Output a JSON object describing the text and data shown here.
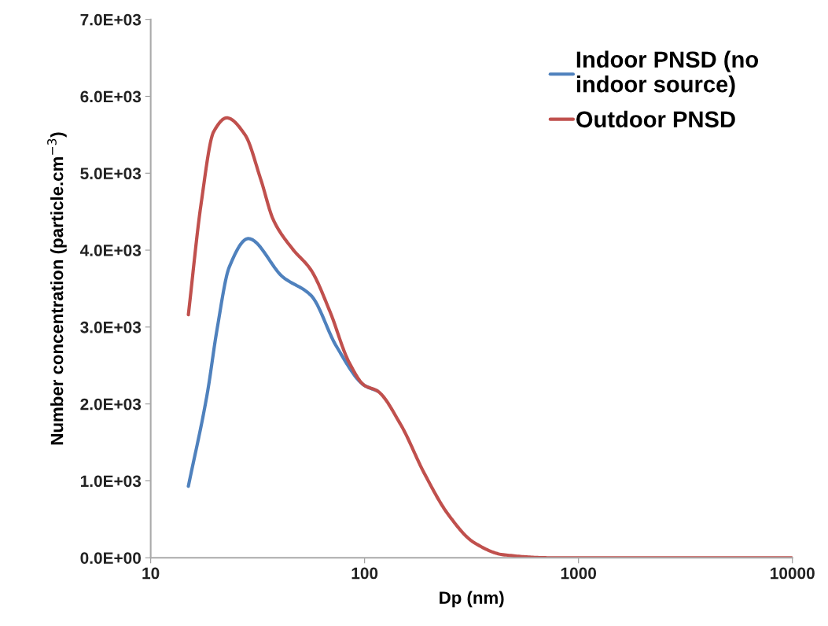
{
  "chart_data": {
    "type": "line",
    "xlabel": "Dp (nm)",
    "ylabel": "Number concentration (particle.cm$^{−3}$)",
    "log": "x",
    "xlim": [
      10,
      10000
    ],
    "xticks": [
      10,
      100,
      1000,
      10000
    ],
    "ylim": [
      0,
      7000
    ],
    "yticks": [
      {
        "value": 0,
        "label": "0.0E+00"
      },
      {
        "value": 1000,
        "label": "1.0E+03"
      },
      {
        "value": 2000,
        "label": "2.0E+03"
      },
      {
        "value": 3000,
        "label": "3.0E+03"
      },
      {
        "value": 4000,
        "label": "4.0E+03"
      },
      {
        "value": 5000,
        "label": "5.0E+03"
      },
      {
        "value": 6000,
        "label": "6.0E+03"
      },
      {
        "value": 7000,
        "label": "7.0E+03"
      }
    ],
    "grid": false,
    "legend": "top right",
    "marker": "none",
    "line_style": "solid",
    "series": [
      {
        "name": "Indoor PNSD (no\nindoor source)",
        "color": "#4f81bd",
        "x": [
          15.0,
          18.4,
          20.4,
          23.3,
          28.6,
          41.5,
          56.2,
          73.8,
          100,
          114.6
        ],
        "values": [
          930,
          2140,
          2960,
          3780,
          4150,
          3650,
          3410,
          2750,
          2240,
          2170
        ]
      },
      {
        "name": "Outdoor PNSD",
        "color": "#c0504d",
        "x": [
          15.0,
          17.2,
          19.7,
          22.7,
          27.6,
          32.7,
          37.5,
          45.9,
          56.2,
          68.9,
          84.3,
          100,
          114.6,
          147.6,
          190,
          245,
          324,
          444,
          738,
          10000
        ],
        "values": [
          3160,
          4600,
          5540,
          5720,
          5500,
          4920,
          4390,
          4020,
          3740,
          3200,
          2550,
          2240,
          2170,
          1730,
          1100,
          570,
          200,
          40,
          0,
          0
        ]
      }
    ]
  }
}
